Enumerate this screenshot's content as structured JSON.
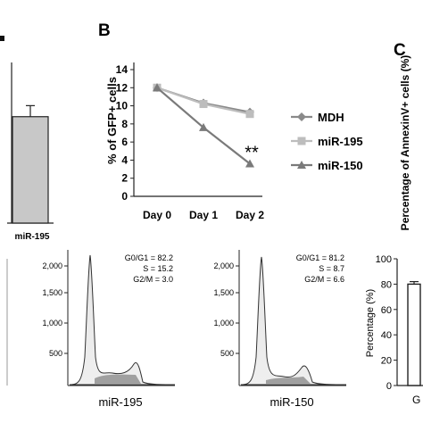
{
  "chart_data": [
    {
      "type": "bar",
      "panel": "A",
      "categories": [
        "miR-195"
      ],
      "values": [
        10.6
      ],
      "errors": [
        1.1
      ],
      "bar_color": "#c8c8c8"
    },
    {
      "type": "line",
      "panel": "B",
      "ylabel": "% of GFP+ cells",
      "categories": [
        "Day 0",
        "Day 1",
        "Day 2"
      ],
      "ylim": [
        0,
        14
      ],
      "yticks": [
        0,
        2,
        4,
        6,
        8,
        10,
        12,
        14
      ],
      "series": [
        {
          "name": "MDH",
          "values": [
            12.0,
            10.3,
            9.3
          ],
          "color": "#8a8a8a",
          "marker": "diamond"
        },
        {
          "name": "miR-195",
          "values": [
            12.0,
            10.2,
            9.1
          ],
          "color": "#bdbdbd",
          "marker": "square"
        },
        {
          "name": "miR-150",
          "values": [
            12.0,
            7.6,
            3.6
          ],
          "color": "#7a7a7a",
          "marker": "triangle"
        }
      ],
      "annotation": "**"
    },
    {
      "type": "bar",
      "panel": "C",
      "ylabel": "Percentage of AnnexinV+ cells (%)"
    },
    {
      "type": "area",
      "panel": "histogram-1",
      "title": "miR-195",
      "yticks": [
        "500",
        "1,000",
        "1,500",
        "2,000"
      ],
      "stats": [
        "G0/G1 = 82.2",
        "S = 15.2",
        "G2/M = 3.0"
      ]
    },
    {
      "type": "area",
      "panel": "histogram-2",
      "title": "miR-150",
      "yticks": [
        "500",
        "1,000",
        "1,500",
        "2,000"
      ],
      "stats": [
        "G0/G1 = 81.2",
        "S = 8.7",
        "G2/M = 6.6"
      ]
    },
    {
      "type": "bar",
      "panel": "bottom-right",
      "ylabel": "Percentage (%)",
      "ylim": [
        0,
        100
      ],
      "yticks": [
        0,
        20,
        40,
        60,
        80,
        100
      ],
      "values": [
        80
      ],
      "errors": [
        2
      ]
    }
  ],
  "panel_letters": {
    "b": "B",
    "c": "C"
  },
  "fragments": {
    "a_tick": "",
    "g": "G"
  }
}
